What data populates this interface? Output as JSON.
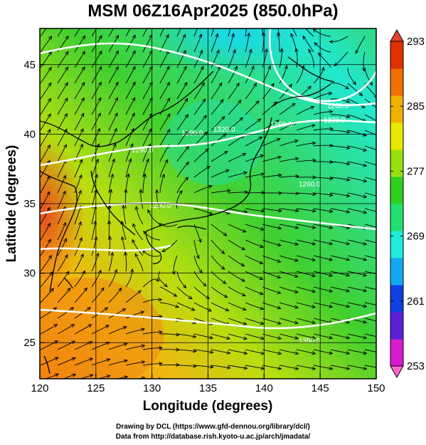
{
  "title": "MSM 06Z16Apr2025 (850.0hPa)",
  "xlabel": "Longitude (degrees)",
  "ylabel": "Latitude  (degrees)",
  "x_ticks": [
    120,
    125,
    130,
    135,
    140,
    145,
    150
  ],
  "y_ticks": [
    25,
    30,
    35,
    40,
    45
  ],
  "x_range": [
    120,
    150
  ],
  "y_range": [
    22.4,
    47.6
  ],
  "colorbar": {
    "ticks": [
      253,
      261,
      269,
      277,
      285,
      293
    ],
    "range": [
      253,
      293
    ],
    "colors": [
      "#d81bd0",
      "#5a1fd6",
      "#1040e0",
      "#12a8f2",
      "#20ecd8",
      "#22e070",
      "#30d020",
      "#96e010",
      "#e8e800",
      "#f0b000",
      "#f07000",
      "#e03000"
    ]
  },
  "contour_labels": [
    "1290.0",
    "1320.0",
    "1290.0",
    "1260.0",
    "1260.0",
    "1230.0",
    "1260.0",
    "1290.0",
    "1350.0"
  ],
  "credits": {
    "line1": "Drawing by DCL (https://www.gfd-dennou.org/library/dcl/)",
    "line2": "Data from http://database.rish.kyoto-u.ac.jp/arch/jmadata/"
  }
}
